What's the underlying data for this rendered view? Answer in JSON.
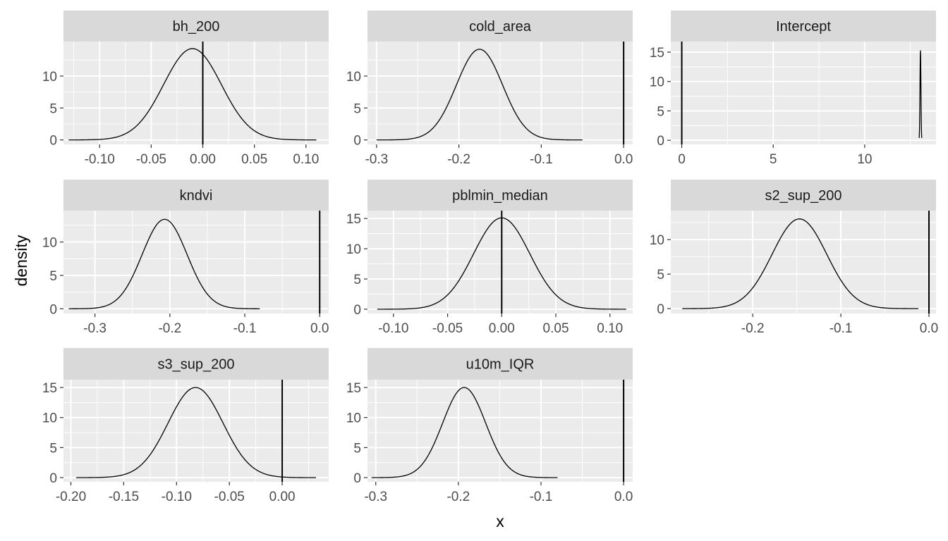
{
  "chart_data": {
    "type": "line",
    "facet_layout": {
      "columns": 3,
      "rows": 3,
      "scales": "free"
    },
    "xlabel": "x",
    "ylabel": "density",
    "grid": true,
    "colors": {
      "panel_bg": "#EBEBEB",
      "strip_bg": "#D9D9D9",
      "grid": "#FFFFFF",
      "line": "#000000",
      "tick_text": "#4D4D4D"
    },
    "panels": [
      {
        "name": "bh_200",
        "xlim": [
          -0.135,
          0.122
        ],
        "ylim": [
          -0.7,
          15.4
        ],
        "xticks": [
          -0.1,
          -0.05,
          0.0,
          0.05,
          0.1
        ],
        "xtick_labels": [
          "-0.10",
          "-0.05",
          "0.00",
          "0.05",
          "0.10"
        ],
        "yticks": [
          0,
          5,
          10
        ],
        "ytick_labels": [
          "0",
          "5",
          "10"
        ],
        "vline": 0,
        "curve": {
          "type": "normal",
          "mean": -0.01,
          "sd": 0.028,
          "peak": 14.3,
          "from": -0.13,
          "to": 0.11
        }
      },
      {
        "name": "cold_area",
        "xlim": [
          -0.311,
          0.011
        ],
        "ylim": [
          -0.7,
          15.4
        ],
        "xticks": [
          -0.3,
          -0.2,
          -0.1,
          0.0
        ],
        "xtick_labels": [
          "-0.3",
          "-0.2",
          "-0.1",
          "0.0"
        ],
        "yticks": [
          0,
          5,
          10
        ],
        "ytick_labels": [
          "0",
          "5",
          "10"
        ],
        "vline": 0,
        "curve": {
          "type": "normal",
          "mean": -0.175,
          "sd": 0.028,
          "peak": 14.2,
          "from": -0.3,
          "to": -0.05
        }
      },
      {
        "name": "Intercept",
        "xlim": [
          -0.6,
          13.9
        ],
        "ylim": [
          -0.7,
          16.8
        ],
        "xticks": [
          0,
          5,
          10
        ],
        "xtick_labels": [
          "0",
          "5",
          "10"
        ],
        "yticks": [
          0,
          5,
          10,
          15
        ],
        "ytick_labels": [
          "0",
          "5",
          "10",
          "15"
        ],
        "vline": 0,
        "curve": {
          "type": "normal",
          "mean": 13.05,
          "sd": 0.026,
          "peak": 15.2,
          "from": 12.98,
          "to": 13.12
        }
      },
      {
        "name": "kndvi",
        "xlim": [
          -0.342,
          0.012
        ],
        "ylim": [
          -0.7,
          14.7
        ],
        "xticks": [
          -0.3,
          -0.2,
          -0.1,
          0.0
        ],
        "xtick_labels": [
          "-0.3",
          "-0.2",
          "-0.1",
          "0.0"
        ],
        "yticks": [
          0,
          5,
          10
        ],
        "ytick_labels": [
          "0",
          "5",
          "10"
        ],
        "vline": 0,
        "curve": {
          "type": "normal",
          "mean": -0.207,
          "sd": 0.03,
          "peak": 13.4,
          "from": -0.335,
          "to": -0.08
        }
      },
      {
        "name": "pblmin_median",
        "xlim": [
          -0.124,
          0.121
        ],
        "ylim": [
          -0.7,
          16.3
        ],
        "xticks": [
          -0.1,
          -0.05,
          0.0,
          0.05,
          0.1
        ],
        "xtick_labels": [
          "-0.10",
          "-0.05",
          "0.00",
          "0.05",
          "0.10"
        ],
        "yticks": [
          0,
          5,
          10,
          15
        ],
        "ytick_labels": [
          "0",
          "5",
          "10",
          "15"
        ],
        "vline": 0,
        "curve": {
          "type": "normal",
          "mean": 0.0,
          "sd": 0.026,
          "peak": 15.1,
          "from": -0.115,
          "to": 0.115
        }
      },
      {
        "name": "s2_sup_200",
        "xlim": [
          -0.293,
          0.008
        ],
        "ylim": [
          -0.7,
          14.2
        ],
        "xticks": [
          -0.2,
          -0.1,
          0.0
        ],
        "xtick_labels": [
          "-0.2",
          "-0.1",
          "0.0"
        ],
        "yticks": [
          0,
          5,
          10
        ],
        "ytick_labels": [
          "0",
          "5",
          "10"
        ],
        "vline": 0,
        "curve": {
          "type": "normal",
          "mean": -0.147,
          "sd": 0.031,
          "peak": 13.0,
          "from": -0.28,
          "to": -0.012
        }
      },
      {
        "name": "s3_sup_200",
        "xlim": [
          -0.207,
          0.044
        ],
        "ylim": [
          -0.7,
          16.3
        ],
        "xticks": [
          -0.2,
          -0.15,
          -0.1,
          -0.05,
          0.0
        ],
        "xtick_labels": [
          "-0.20",
          "-0.15",
          "-0.10",
          "-0.05",
          "0.00"
        ],
        "yticks": [
          0,
          5,
          10,
          15
        ],
        "ytick_labels": [
          "0",
          "5",
          "10",
          "15"
        ],
        "vline": 0,
        "curve": {
          "type": "normal",
          "mean": -0.082,
          "sd": 0.026,
          "peak": 15.0,
          "from": -0.195,
          "to": 0.032
        }
      },
      {
        "name": "u10m_IQR",
        "xlim": [
          -0.31,
          0.011
        ],
        "ylim": [
          -0.7,
          16.3
        ],
        "xticks": [
          -0.3,
          -0.2,
          -0.1,
          0.0
        ],
        "xtick_labels": [
          "-0.3",
          "-0.2",
          "-0.1",
          "0.0"
        ],
        "yticks": [
          0,
          5,
          10,
          15
        ],
        "ytick_labels": [
          "0",
          "5",
          "10",
          "15"
        ],
        "vline": 0,
        "curve": {
          "type": "normal",
          "mean": -0.193,
          "sd": 0.026,
          "peak": 15.0,
          "from": -0.305,
          "to": -0.08
        }
      }
    ]
  }
}
